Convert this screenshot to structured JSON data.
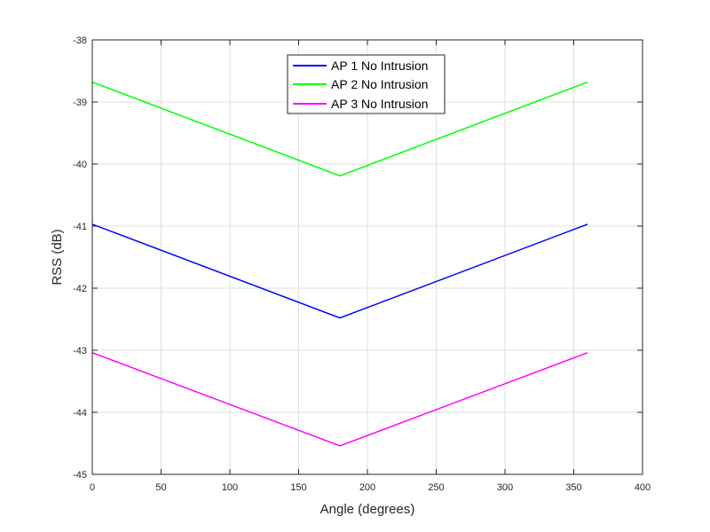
{
  "chart_data": {
    "type": "line",
    "title": "",
    "xlabel": "Angle (degrees)",
    "ylabel": "RSS (dB)",
    "xlim": [
      0,
      400
    ],
    "ylim": [
      -45,
      -38
    ],
    "xticks": [
      0,
      50,
      100,
      150,
      200,
      250,
      300,
      350,
      400
    ],
    "yticks": [
      -45,
      -44,
      -43,
      -42,
      -41,
      -40,
      -39,
      -38
    ],
    "grid": true,
    "legend_position": "top-center",
    "series": [
      {
        "name": "AP 1 No Intrusion",
        "color": "#0000ff",
        "x": [
          0,
          180,
          360
        ],
        "y": [
          -40.97,
          -42.48,
          -40.97
        ]
      },
      {
        "name": "AP 2 No Intrusion",
        "color": "#00ff00",
        "x": [
          0,
          180,
          360
        ],
        "y": [
          -38.68,
          -40.19,
          -38.68
        ]
      },
      {
        "name": "AP 3 No Intrusion",
        "color": "#ff00ff",
        "x": [
          0,
          180,
          360
        ],
        "y": [
          -43.04,
          -44.54,
          -43.04
        ]
      }
    ]
  }
}
